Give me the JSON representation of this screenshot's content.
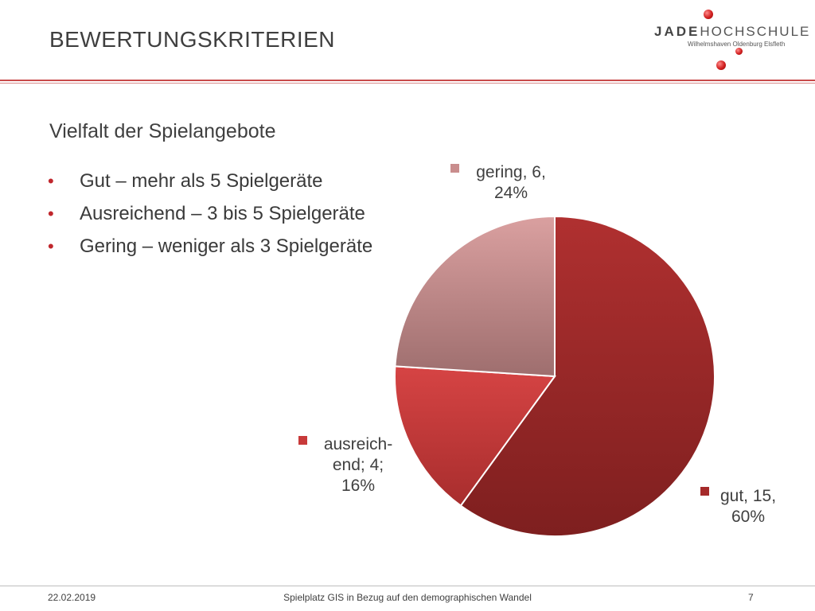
{
  "header": {
    "title": "BEWERTUNGSKRITERIEN",
    "logo_text_strong": "JADE",
    "logo_text": "HOCHSCHULE",
    "logo_subtitle": "Wilhelmshaven Oldenburg Elsfleth"
  },
  "content": {
    "subtitle": "Vielfalt der Spielangebote",
    "bullets": [
      "Gut – mehr als 5 Spielgeräte",
      "Ausreichend – 3 bis 5 Spielgeräte",
      "Gering – weniger als 3 Spielgeräte"
    ]
  },
  "chart_data": {
    "type": "pie",
    "title": "",
    "slices": [
      {
        "category": "gut",
        "value": 15,
        "percent": 60,
        "color": "#a52a2a",
        "label_lines": [
          "gut, 15,",
          "60%"
        ]
      },
      {
        "category": "ausreich-end",
        "value": 4,
        "percent": 16,
        "color": "#c83a3a",
        "label_lines": [
          "ausreich-",
          "end; 4;",
          "16%"
        ]
      },
      {
        "category": "gering",
        "value": 6,
        "percent": 24,
        "color": "#c98d8d",
        "label_lines": [
          "gering, 6,",
          "24%"
        ]
      }
    ]
  },
  "footer": {
    "date": "22.02.2019",
    "center": "Spielplatz GIS in Bezug auf den demographischen Wandel",
    "page": "7"
  }
}
